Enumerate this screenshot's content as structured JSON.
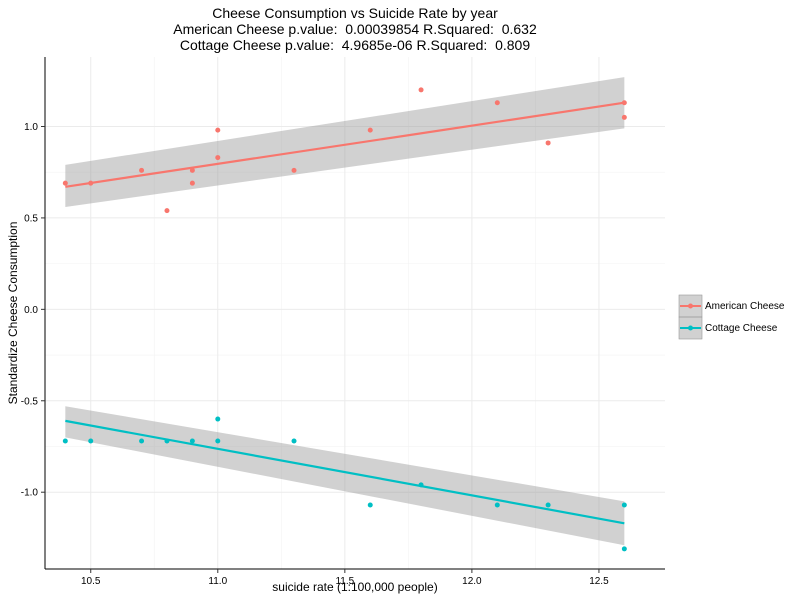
{
  "chart_data": {
    "type": "scatter",
    "title_lines": [
      "Cheese Consumption vs Suicide Rate by year",
      "American Cheese p.value:  0.00039854 R.Squared:  0.632",
      "Cottage Cheese p.value:  4.9685e-06 R.Squared:  0.809"
    ],
    "xlabel": "suicide rate (1:100,000 people)",
    "ylabel": "Standardize Cheese Consumption",
    "xlim": [
      10.32,
      12.76
    ],
    "ylim": [
      -1.42,
      1.38
    ],
    "x_ticks": [
      10.5,
      11.0,
      11.5,
      12.0,
      12.5
    ],
    "x_tick_labels": [
      "10.5",
      "11.0",
      "11.5",
      "12.0",
      "12.5"
    ],
    "y_ticks": [
      -1.0,
      -0.5,
      0.0,
      0.5,
      1.0
    ],
    "y_tick_labels": [
      "-1.0",
      "-0.5",
      "0.0",
      "0.5",
      "1.0"
    ],
    "grid": true,
    "legend_position": "right",
    "series": [
      {
        "name": "American Cheese",
        "color": "#F8766D",
        "points": [
          [
            10.4,
            0.69
          ],
          [
            10.5,
            0.69
          ],
          [
            10.7,
            0.76
          ],
          [
            10.8,
            0.54
          ],
          [
            10.9,
            0.69
          ],
          [
            10.9,
            0.76
          ],
          [
            11.0,
            0.83
          ],
          [
            11.0,
            0.98
          ],
          [
            11.3,
            0.76
          ],
          [
            11.6,
            0.98
          ],
          [
            11.8,
            1.2
          ],
          [
            12.1,
            1.13
          ],
          [
            12.3,
            0.91
          ],
          [
            12.6,
            1.05
          ],
          [
            12.6,
            1.13
          ]
        ],
        "fit": {
          "x": [
            10.4,
            12.6
          ],
          "y": [
            0.67,
            1.13
          ],
          "lower": [
            0.56,
            0.99
          ],
          "upper": [
            0.79,
            1.27
          ]
        }
      },
      {
        "name": "Cottage Cheese",
        "color": "#00BFC4",
        "points": [
          [
            10.4,
            -0.72
          ],
          [
            10.5,
            -0.72
          ],
          [
            10.7,
            -0.72
          ],
          [
            10.8,
            -0.72
          ],
          [
            10.9,
            -0.72
          ],
          [
            11.0,
            -0.6
          ],
          [
            11.0,
            -0.72
          ],
          [
            11.3,
            -0.72
          ],
          [
            11.6,
            -1.07
          ],
          [
            11.8,
            -0.96
          ],
          [
            12.1,
            -1.07
          ],
          [
            12.3,
            -1.07
          ],
          [
            12.6,
            -1.07
          ],
          [
            12.6,
            -1.31
          ]
        ],
        "fit": {
          "x": [
            10.4,
            12.6
          ],
          "y": [
            -0.61,
            -1.17
          ],
          "lower": [
            -0.7,
            -1.29
          ],
          "upper": [
            -0.53,
            -1.05
          ]
        }
      }
    ]
  }
}
